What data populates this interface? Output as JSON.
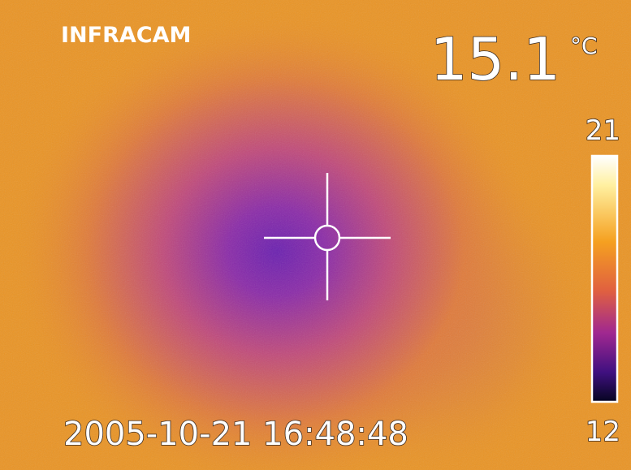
{
  "brand": "INFRACAM",
  "reading": {
    "temperature": 15.1,
    "unit": "°C"
  },
  "scale": {
    "max": 21,
    "min": 12
  },
  "timestamp": "2005-10-21 16:48:48"
}
